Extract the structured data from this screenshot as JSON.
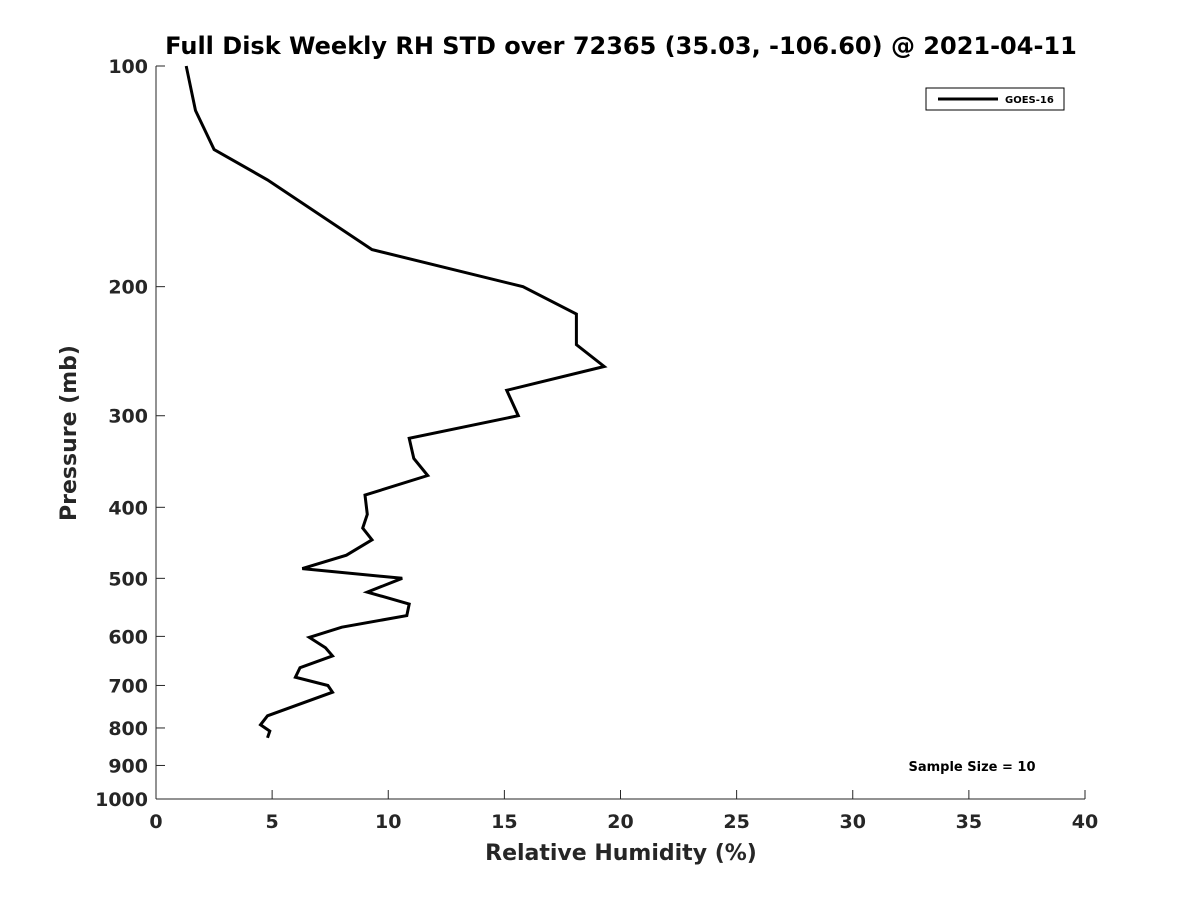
{
  "chart_data": {
    "type": "line",
    "title": "Full Disk Weekly RH STD over 72365 (35.03, -106.60) @ 2021-04-11",
    "xlabel": "Relative Humidity (%)",
    "ylabel": "Pressure (mb)",
    "xlim": [
      0,
      40
    ],
    "ylim": [
      1000,
      100
    ],
    "y_scale": "log",
    "y_direction": "reversed",
    "x_ticks": [
      "0",
      "5",
      "10",
      "15",
      "20",
      "25",
      "30",
      "35",
      "40"
    ],
    "y_ticks": [
      "100",
      "200",
      "300",
      "400",
      "500",
      "600",
      "700",
      "800",
      "900",
      "1000"
    ],
    "grid": false,
    "legend_position": "top-right",
    "annotation": "Sample Size = 10",
    "series": [
      {
        "name": "GOES-16",
        "color": "#000000",
        "points": [
          {
            "x": 1.3,
            "y": 100
          },
          {
            "x": 1.7,
            "y": 115
          },
          {
            "x": 2.5,
            "y": 130
          },
          {
            "x": 4.8,
            "y": 143
          },
          {
            "x": 9.3,
            "y": 178
          },
          {
            "x": 15.8,
            "y": 200
          },
          {
            "x": 18.1,
            "y": 218
          },
          {
            "x": 18.1,
            "y": 240
          },
          {
            "x": 19.3,
            "y": 257
          },
          {
            "x": 15.1,
            "y": 277
          },
          {
            "x": 15.6,
            "y": 300
          },
          {
            "x": 10.9,
            "y": 322
          },
          {
            "x": 11.1,
            "y": 343
          },
          {
            "x": 11.7,
            "y": 362
          },
          {
            "x": 9.0,
            "y": 385
          },
          {
            "x": 9.1,
            "y": 409
          },
          {
            "x": 8.9,
            "y": 427
          },
          {
            "x": 9.3,
            "y": 443
          },
          {
            "x": 8.2,
            "y": 465
          },
          {
            "x": 6.3,
            "y": 485
          },
          {
            "x": 10.6,
            "y": 500
          },
          {
            "x": 9.1,
            "y": 522
          },
          {
            "x": 10.9,
            "y": 542
          },
          {
            "x": 10.8,
            "y": 562
          },
          {
            "x": 8.0,
            "y": 583
          },
          {
            "x": 6.6,
            "y": 602
          },
          {
            "x": 7.3,
            "y": 622
          },
          {
            "x": 7.6,
            "y": 638
          },
          {
            "x": 6.2,
            "y": 662
          },
          {
            "x": 6.0,
            "y": 682
          },
          {
            "x": 7.4,
            "y": 700
          },
          {
            "x": 7.6,
            "y": 715
          },
          {
            "x": 4.8,
            "y": 770
          },
          {
            "x": 4.5,
            "y": 792
          },
          {
            "x": 4.9,
            "y": 808
          },
          {
            "x": 4.8,
            "y": 825
          }
        ]
      }
    ]
  }
}
